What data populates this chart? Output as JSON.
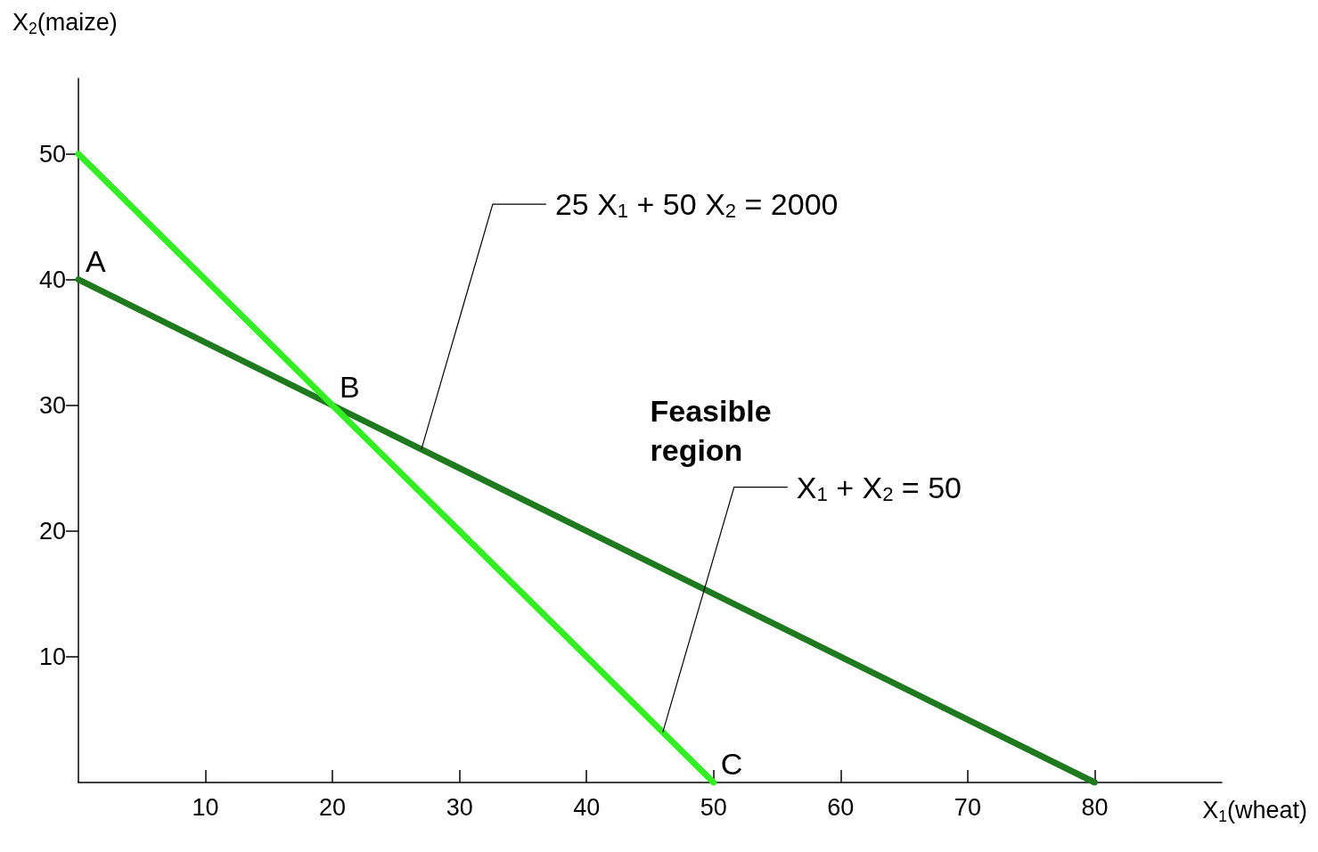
{
  "chart_data": {
    "type": "line",
    "xlabel": "X$_{1}$(wheat)",
    "ylabel": "X$_{2}$(maize)",
    "xlim": [
      0,
      90
    ],
    "ylim": [
      0,
      56
    ],
    "xticks": [
      10,
      20,
      30,
      40,
      50,
      60,
      70,
      80
    ],
    "yticks": [
      10,
      20,
      30,
      40,
      50
    ],
    "grid": false,
    "marker": "none",
    "line_style": "solid",
    "series": [
      {
        "color": "#1f7a1f",
        "x": [
          0,
          80
        ],
        "values": [
          40,
          0
        ]
      },
      {
        "color": "#33ee22",
        "x": [
          0,
          50
        ],
        "values": [
          50,
          0
        ]
      }
    ],
    "annotations": [
      {
        "text": "A",
        "x": 0,
        "y": 40
      },
      {
        "text": "B",
        "x": 20,
        "y": 30
      },
      {
        "text": "C",
        "x": 50,
        "y": 0
      },
      "Feasible region",
      {
        "text": "25 X$_{1}$ + 50 X$_{2}$ = 2000",
        "x": 27,
        "y": 26.5
      },
      {
        "text": "X$_{1}$ + X$_{2}$ = 50",
        "x": 46,
        "y": 4
      }
    ]
  }
}
